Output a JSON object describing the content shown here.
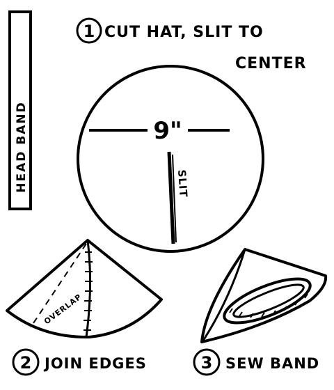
{
  "head_band": {
    "label": "HEAD BAND"
  },
  "step1": {
    "number": "1",
    "line1": "CUT HAT, SLIT TO",
    "line2": "CENTER"
  },
  "circle": {
    "dimension": "9\"",
    "slit_label": "SLIT"
  },
  "step2": {
    "number": "2",
    "label": "JOIN EDGES",
    "overlap_label": "OVERLAP"
  },
  "step3": {
    "number": "3",
    "label": "SEW BAND"
  }
}
